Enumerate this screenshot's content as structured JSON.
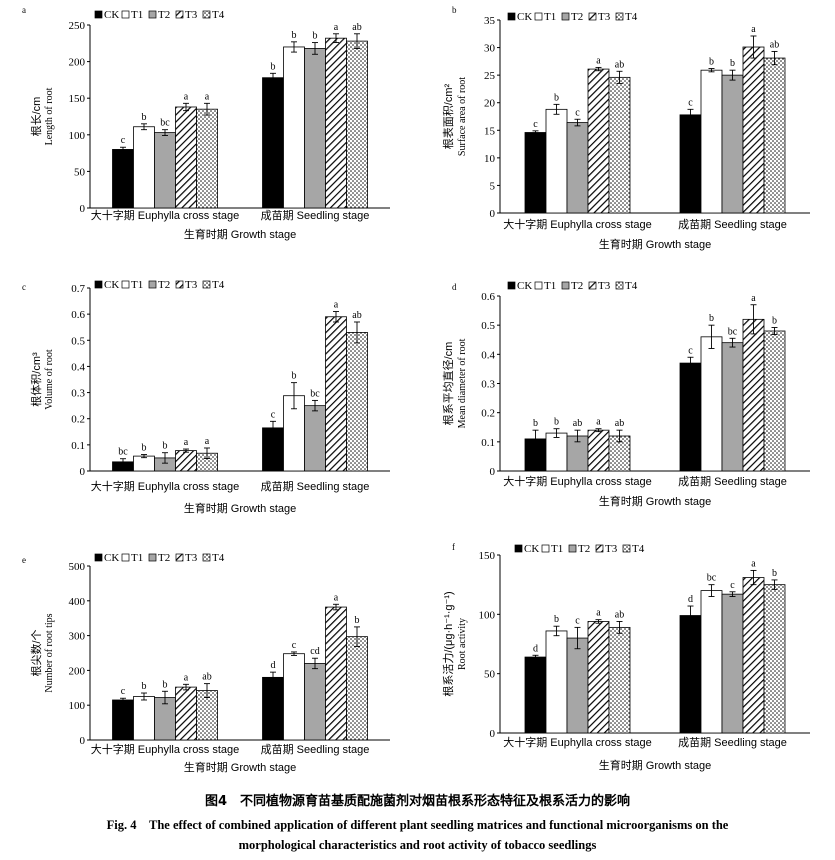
{
  "legend": [
    "CK",
    "T1",
    "T2",
    "T3",
    "T4"
  ],
  "xlabel": "生育时期 Growth stage",
  "categories": [
    "大十字期 Euphylla cross stage",
    "成苗期 Seedling stage"
  ],
  "caption_zh": "图4　不同植物源育苗基质配施菌剂对烟苗根系形态特征及根系活力的影响",
  "caption_en_1": "Fig. 4　The effect of combined application of different plant seedling matrices and functional microorganisms on the",
  "caption_en_2": "morphological characteristics and root activity of tobacco seedlings",
  "chart_data": [
    {
      "id": "a",
      "type": "bar",
      "panel_label": "a",
      "ylabel_zh": "根长/cm",
      "ylabel_en": "Length of root",
      "ylim": [
        0,
        250
      ],
      "yticks": [
        0,
        50,
        100,
        150,
        200,
        250
      ],
      "series": [
        {
          "name": "CK",
          "values": [
            80,
            178
          ],
          "errors": [
            3,
            6
          ],
          "letters": [
            "c",
            "b"
          ]
        },
        {
          "name": "T1",
          "values": [
            111,
            220
          ],
          "errors": [
            4,
            7
          ],
          "letters": [
            "b",
            "b"
          ]
        },
        {
          "name": "T2",
          "values": [
            103,
            218
          ],
          "errors": [
            4,
            8
          ],
          "letters": [
            "bc",
            "b"
          ]
        },
        {
          "name": "T3",
          "values": [
            138,
            232
          ],
          "errors": [
            5,
            6
          ],
          "letters": [
            "a",
            "a"
          ]
        },
        {
          "name": "T4",
          "values": [
            135,
            228
          ],
          "errors": [
            8,
            10
          ],
          "letters": [
            "a",
            "ab"
          ]
        }
      ]
    },
    {
      "id": "b",
      "type": "bar",
      "panel_label": "b",
      "ylabel_zh": "根表面积/cm²",
      "ylabel_en": "Surface area of root",
      "ylim": [
        0,
        35
      ],
      "yticks": [
        0,
        5,
        10,
        15,
        20,
        25,
        30,
        35
      ],
      "series": [
        {
          "name": "CK",
          "values": [
            14.6,
            17.8
          ],
          "errors": [
            0.3,
            1.0
          ],
          "letters": [
            "c",
            "c"
          ]
        },
        {
          "name": "T1",
          "values": [
            18.8,
            25.9
          ],
          "errors": [
            0.9,
            0.3
          ],
          "letters": [
            "b",
            "b"
          ]
        },
        {
          "name": "T2",
          "values": [
            16.4,
            25.0
          ],
          "errors": [
            0.6,
            0.9
          ],
          "letters": [
            "c",
            "b"
          ]
        },
        {
          "name": "T3",
          "values": [
            26.1,
            30.1
          ],
          "errors": [
            0.3,
            2.0
          ],
          "letters": [
            "a",
            "a"
          ]
        },
        {
          "name": "T4",
          "values": [
            24.6,
            28.1
          ],
          "errors": [
            1.1,
            1.2
          ],
          "letters": [
            "ab",
            "ab"
          ]
        }
      ]
    },
    {
      "id": "c",
      "type": "bar",
      "panel_label": "c",
      "ylabel_zh": "根体积/cm³",
      "ylabel_en": "Volume of root",
      "ylim": [
        0,
        0.7
      ],
      "yticks": [
        0,
        0.1,
        0.2,
        0.3,
        0.4,
        0.5,
        0.6,
        0.7
      ],
      "series": [
        {
          "name": "CK",
          "values": [
            0.035,
            0.165
          ],
          "errors": [
            0.012,
            0.025
          ],
          "letters": [
            "bc",
            "c"
          ]
        },
        {
          "name": "T1",
          "values": [
            0.057,
            0.288
          ],
          "errors": [
            0.006,
            0.05
          ],
          "letters": [
            "b",
            "b"
          ]
        },
        {
          "name": "T2",
          "values": [
            0.05,
            0.25
          ],
          "errors": [
            0.02,
            0.02
          ],
          "letters": [
            "b",
            "bc"
          ]
        },
        {
          "name": "T3",
          "values": [
            0.078,
            0.59
          ],
          "errors": [
            0.006,
            0.02
          ],
          "letters": [
            "a",
            "a"
          ]
        },
        {
          "name": "T4",
          "values": [
            0.068,
            0.53
          ],
          "errors": [
            0.02,
            0.04
          ],
          "letters": [
            "a",
            "ab"
          ]
        }
      ]
    },
    {
      "id": "d",
      "type": "bar",
      "panel_label": "d",
      "ylabel_zh": "根系平均直径/cm",
      "ylabel_en": "Mean diameter of root",
      "ylim": [
        0,
        0.6
      ],
      "yticks": [
        0,
        0.1,
        0.2,
        0.3,
        0.4,
        0.5,
        0.6
      ],
      "series": [
        {
          "name": "CK",
          "values": [
            0.11,
            0.37
          ],
          "errors": [
            0.03,
            0.02
          ],
          "letters": [
            "b",
            "c"
          ]
        },
        {
          "name": "T1",
          "values": [
            0.13,
            0.46
          ],
          "errors": [
            0.015,
            0.04
          ],
          "letters": [
            "b",
            "b"
          ]
        },
        {
          "name": "T2",
          "values": [
            0.12,
            0.44
          ],
          "errors": [
            0.02,
            0.015
          ],
          "letters": [
            "ab",
            "bc"
          ]
        },
        {
          "name": "T3",
          "values": [
            0.14,
            0.52
          ],
          "errors": [
            0.005,
            0.05
          ],
          "letters": [
            "a",
            "a"
          ]
        },
        {
          "name": "T4",
          "values": [
            0.12,
            0.48
          ],
          "errors": [
            0.02,
            0.012
          ],
          "letters": [
            "ab",
            "b"
          ]
        }
      ]
    },
    {
      "id": "e",
      "type": "bar",
      "panel_label": "e",
      "ylabel_zh": "根尖数/个",
      "ylabel_en": "Number of root tips",
      "ylim": [
        0,
        500
      ],
      "yticks": [
        0,
        100,
        200,
        300,
        400,
        500
      ],
      "series": [
        {
          "name": "CK",
          "values": [
            115,
            180
          ],
          "errors": [
            5,
            15
          ],
          "letters": [
            "c",
            "d"
          ]
        },
        {
          "name": "T1",
          "values": [
            125,
            248
          ],
          "errors": [
            10,
            5
          ],
          "letters": [
            "b",
            "c"
          ]
        },
        {
          "name": "T2",
          "values": [
            122,
            220
          ],
          "errors": [
            18,
            15
          ],
          "letters": [
            "b",
            "cd"
          ]
        },
        {
          "name": "T3",
          "values": [
            152,
            382
          ],
          "errors": [
            8,
            8
          ],
          "letters": [
            "a",
            "a"
          ]
        },
        {
          "name": "T4",
          "values": [
            142,
            297
          ],
          "errors": [
            20,
            28
          ],
          "letters": [
            "ab",
            "b"
          ]
        }
      ]
    },
    {
      "id": "f",
      "type": "bar",
      "panel_label": "f",
      "ylabel_zh": "根系活力/(μg·h⁻¹·g⁻¹)",
      "ylabel_en": "Root activity",
      "ylim": [
        0,
        150
      ],
      "yticks": [
        0,
        50,
        100,
        150
      ],
      "series": [
        {
          "name": "CK",
          "values": [
            64,
            99
          ],
          "errors": [
            1.5,
            8
          ],
          "letters": [
            "d",
            "d"
          ]
        },
        {
          "name": "T1",
          "values": [
            86,
            120
          ],
          "errors": [
            4,
            5
          ],
          "letters": [
            "b",
            "bc"
          ]
        },
        {
          "name": "T2",
          "values": [
            80,
            117
          ],
          "errors": [
            9,
            2
          ],
          "letters": [
            "c",
            "c"
          ]
        },
        {
          "name": "T3",
          "values": [
            94,
            131
          ],
          "errors": [
            1.5,
            6
          ],
          "letters": [
            "a",
            "a"
          ]
        },
        {
          "name": "T4",
          "values": [
            89,
            125
          ],
          "errors": [
            5,
            4
          ],
          "letters": [
            "ab",
            "b"
          ]
        }
      ]
    }
  ]
}
